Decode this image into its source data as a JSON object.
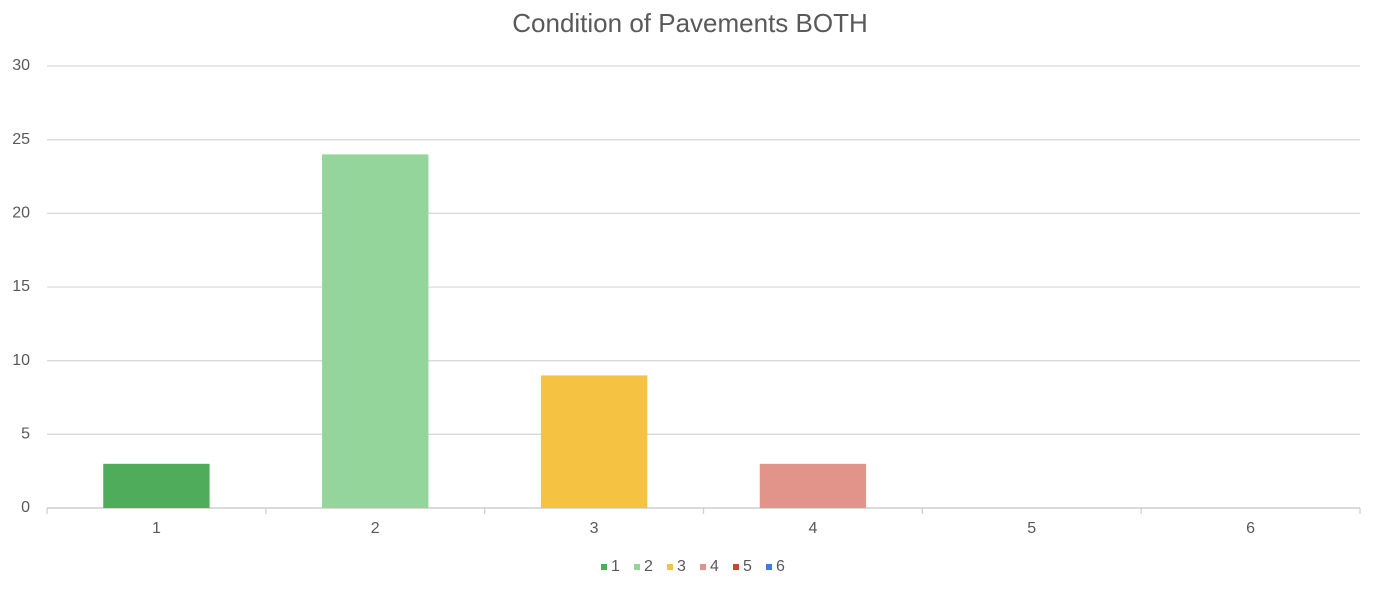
{
  "chart_data": {
    "type": "bar",
    "title": "Condition of Pavements BOTH",
    "categories": [
      "1",
      "2",
      "3",
      "4",
      "5",
      "6"
    ],
    "values": [
      3,
      24,
      9,
      3,
      0,
      0
    ],
    "colors": [
      "#4eac5b",
      "#93d59a",
      "#f5c242",
      "#e3948a",
      "#c8452f",
      "#3f7ae0"
    ],
    "ylim": [
      0,
      30
    ],
    "yticks": [
      0,
      5,
      10,
      15,
      20,
      25,
      30
    ],
    "grid": true,
    "legend": "bottom"
  }
}
